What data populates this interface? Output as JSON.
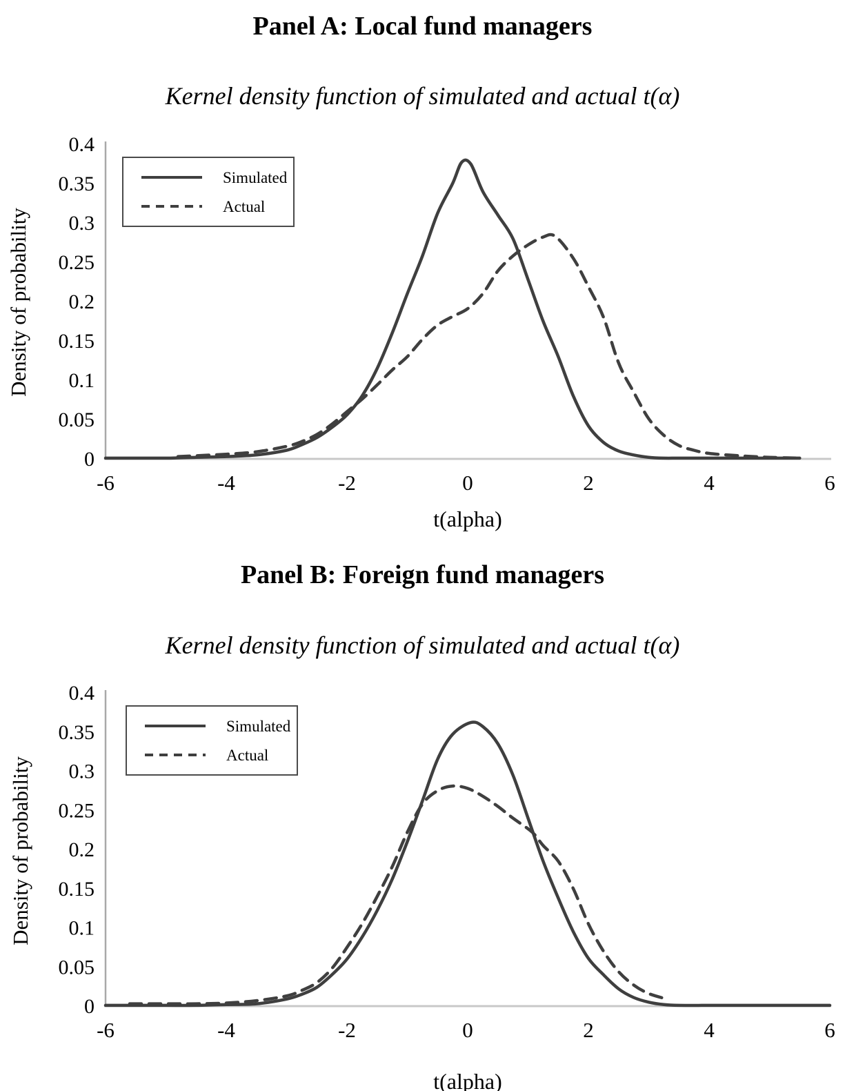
{
  "colors": {
    "curve": "#3f3f3f",
    "baseline": "#c8c8c8",
    "y_axis": "#a9a9a9",
    "text": "#000000"
  },
  "chart_data": [
    {
      "type": "line",
      "title": "Panel A: Local fund managers",
      "subtitle": "Kernel density function of simulated and actual t(α)",
      "xlabel": "t(alpha)",
      "ylabel": "Density of probability",
      "xlim": [
        -6,
        6
      ],
      "ylim": [
        0,
        0.4
      ],
      "grid": false,
      "legend_position": "upper-left",
      "x_ticks": [
        "-6",
        "-4",
        "-2",
        "0",
        "2",
        "4",
        "6"
      ],
      "x_tick_values": [
        -6,
        -4,
        -2,
        0,
        2,
        4,
        6
      ],
      "y_ticks": [
        "0",
        "0.05",
        "0.1",
        "0.15",
        "0.2",
        "0.25",
        "0.3",
        "0.35",
        "0.4"
      ],
      "y_tick_values": [
        0,
        0.05,
        0.1,
        0.15,
        0.2,
        0.25,
        0.3,
        0.35,
        0.4
      ],
      "series": [
        {
          "name": "Simulated",
          "line_style": "solid",
          "x": [
            -6,
            -5.5,
            -5,
            -4.5,
            -4,
            -3.5,
            -3,
            -2.75,
            -2.5,
            -2.25,
            -2,
            -1.75,
            -1.5,
            -1.25,
            -1,
            -0.75,
            -0.5,
            -0.25,
            -0.1,
            0.05,
            0.25,
            0.5,
            0.75,
            1,
            1.25,
            1.5,
            1.75,
            2,
            2.25,
            2.5,
            2.75,
            3,
            3.25,
            3.5,
            4,
            4.5,
            5,
            5.5
          ],
          "y": [
            0.001,
            0.001,
            0.001,
            0.002,
            0.003,
            0.005,
            0.011,
            0.018,
            0.027,
            0.04,
            0.056,
            0.08,
            0.115,
            0.16,
            0.21,
            0.258,
            0.312,
            0.35,
            0.377,
            0.375,
            0.34,
            0.31,
            0.28,
            0.228,
            0.175,
            0.13,
            0.08,
            0.042,
            0.021,
            0.01,
            0.005,
            0.002,
            0.001,
            0.001,
            0.001,
            0.001,
            0.001,
            0.001
          ]
        },
        {
          "name": "Actual",
          "line_style": "dashed",
          "x": [
            -4.8,
            -4.5,
            -4,
            -3.5,
            -3,
            -2.75,
            -2.5,
            -2.25,
            -2,
            -1.75,
            -1.5,
            -1.25,
            -1,
            -0.75,
            -0.5,
            -0.25,
            0,
            0.25,
            0.5,
            0.75,
            1,
            1.25,
            1.45,
            1.75,
            2,
            2.25,
            2.5,
            2.75,
            3,
            3.25,
            3.5,
            3.75,
            4,
            4.5,
            5,
            5.5
          ],
          "y": [
            0.003,
            0.004,
            0.006,
            0.009,
            0.016,
            0.022,
            0.031,
            0.044,
            0.06,
            0.076,
            0.094,
            0.113,
            0.13,
            0.152,
            0.17,
            0.181,
            0.191,
            0.21,
            0.239,
            0.258,
            0.272,
            0.282,
            0.283,
            0.255,
            0.219,
            0.18,
            0.122,
            0.085,
            0.051,
            0.03,
            0.017,
            0.011,
            0.007,
            0.004,
            0.002,
            0.001
          ]
        }
      ]
    },
    {
      "type": "line",
      "title": "Panel B: Foreign fund managers",
      "subtitle": "Kernel density function of simulated and actual t(α)",
      "xlabel": "t(alpha)",
      "ylabel": "Density of probability",
      "xlim": [
        -6,
        6
      ],
      "ylim": [
        0,
        0.4
      ],
      "grid": false,
      "legend_position": "upper-left",
      "x_ticks": [
        "-6",
        "-4",
        "-2",
        "0",
        "2",
        "4",
        "6"
      ],
      "x_tick_values": [
        -6,
        -4,
        -2,
        0,
        2,
        4,
        6
      ],
      "y_ticks": [
        "0",
        "0.05",
        "0.1",
        "0.15",
        "0.2",
        "0.25",
        "0.3",
        "0.35",
        "0.4"
      ],
      "y_tick_values": [
        0,
        0.05,
        0.1,
        0.15,
        0.2,
        0.25,
        0.3,
        0.35,
        0.4
      ],
      "series": [
        {
          "name": "Simulated",
          "line_style": "solid",
          "x": [
            -6,
            -5.5,
            -5,
            -4.5,
            -4,
            -3.5,
            -3,
            -2.75,
            -2.5,
            -2.25,
            -2,
            -1.75,
            -1.5,
            -1.25,
            -1,
            -0.75,
            -0.5,
            -0.25,
            0.05,
            0.25,
            0.5,
            0.75,
            1,
            1.25,
            1.5,
            1.75,
            2,
            2.25,
            2.5,
            2.75,
            3,
            3.25,
            3.5,
            4,
            4.5,
            5,
            5.5,
            6
          ],
          "y": [
            0.001,
            0.001,
            0.001,
            0.001,
            0.002,
            0.003,
            0.009,
            0.015,
            0.024,
            0.04,
            0.06,
            0.088,
            0.122,
            0.162,
            0.21,
            0.262,
            0.315,
            0.347,
            0.362,
            0.357,
            0.335,
            0.295,
            0.24,
            0.185,
            0.138,
            0.095,
            0.061,
            0.04,
            0.022,
            0.011,
            0.005,
            0.002,
            0.001,
            0.001,
            0.001,
            0.001,
            0.001,
            0.001
          ]
        },
        {
          "name": "Actual",
          "line_style": "dashed",
          "x": [
            -5.6,
            -5,
            -4.5,
            -4,
            -3.5,
            -3,
            -2.75,
            -2.5,
            -2.25,
            -2,
            -1.75,
            -1.5,
            -1.25,
            -1,
            -0.75,
            -0.5,
            -0.25,
            0,
            0.25,
            0.5,
            0.75,
            1.07,
            1.25,
            1.5,
            1.75,
            2,
            2.25,
            2.5,
            2.75,
            3,
            3.3
          ],
          "y": [
            0.003,
            0.003,
            0.003,
            0.004,
            0.007,
            0.013,
            0.02,
            0.03,
            0.048,
            0.075,
            0.105,
            0.14,
            0.178,
            0.222,
            0.258,
            0.275,
            0.281,
            0.278,
            0.268,
            0.255,
            0.24,
            0.222,
            0.205,
            0.185,
            0.15,
            0.105,
            0.07,
            0.044,
            0.027,
            0.016,
            0.009
          ]
        }
      ]
    }
  ]
}
